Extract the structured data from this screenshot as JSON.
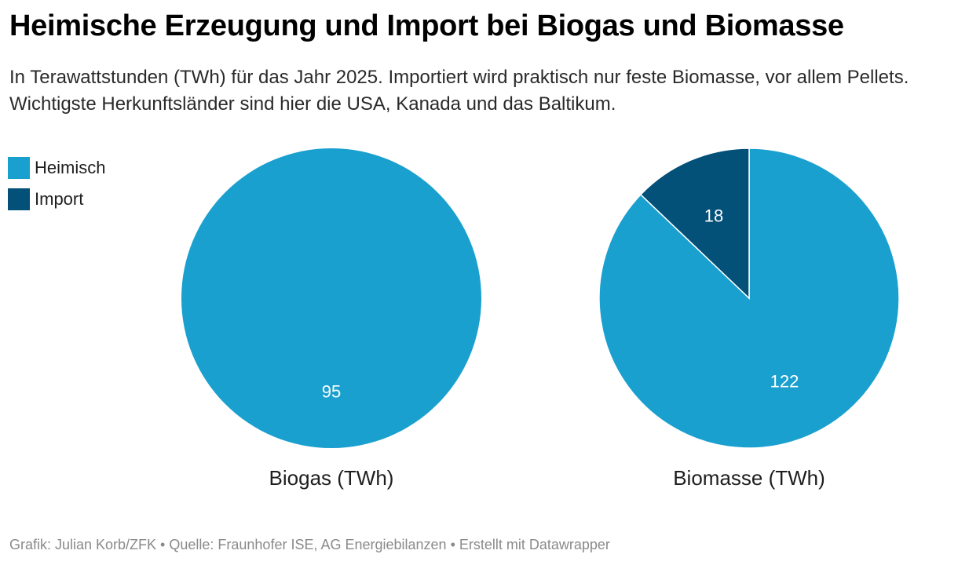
{
  "title": "Heimische Erzeugung und Import bei Biogas und Biomasse",
  "subtitle": "In Terawattstunden (TWh) für das Jahr 2025. Importiert wird praktisch nur feste Biomasse, vor allem Pellets. Wichtigste Herkunftsländer sind hier die USA, Kanada und das Baltikum.",
  "legend": [
    {
      "label": "Heimisch",
      "color": "#1aa0cf"
    },
    {
      "label": "Import",
      "color": "#035079"
    }
  ],
  "chart_data": [
    {
      "type": "pie",
      "title": "Biogas (TWh)",
      "series": [
        {
          "name": "Heimisch",
          "value": 95
        },
        {
          "name": "Import",
          "value": 0
        }
      ]
    },
    {
      "type": "pie",
      "title": "Biomasse (TWh)",
      "series": [
        {
          "name": "Heimisch",
          "value": 122
        },
        {
          "name": "Import",
          "value": 18
        }
      ]
    }
  ],
  "footer": "Grafik: Julian Korb/ZFK • Quelle: Fraunhofer ISE, AG Energiebilanzen • Erstellt mit Datawrapper"
}
